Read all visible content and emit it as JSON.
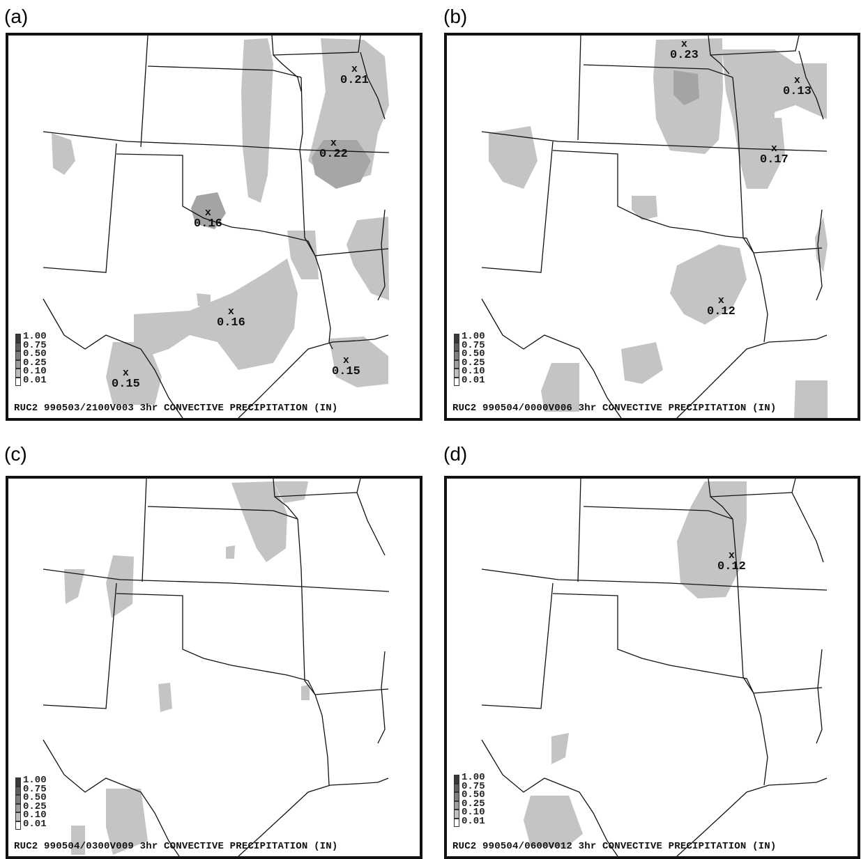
{
  "panels": [
    {
      "label": "(a)",
      "caption": "RUC2 990503/2100V003 3hr CONVECTIVE PRECIPITATION (IN)",
      "maxima": [
        {
          "value": "0.21"
        },
        {
          "value": "0.22"
        },
        {
          "value": "0.16"
        },
        {
          "value": "0.16"
        },
        {
          "value": "0.15"
        },
        {
          "value": "0.15"
        }
      ]
    },
    {
      "label": "(b)",
      "caption": "RUC2 990504/0000V006 3hr CONVECTIVE PRECIPITATION (IN)",
      "maxima": [
        {
          "value": "0.23"
        },
        {
          "value": "0.13"
        },
        {
          "value": "0.17"
        },
        {
          "value": "0.12"
        }
      ]
    },
    {
      "label": "(c)",
      "caption": "RUC2 990504/0300V009 3hr CONVECTIVE PRECIPITATION (IN)",
      "maxima": []
    },
    {
      "label": "(d)",
      "caption": "RUC2 990504/0600V012 3hr CONVECTIVE PRECIPITATION (IN)",
      "maxima": [
        {
          "value": "0.12"
        }
      ]
    }
  ],
  "legend": {
    "levels": [
      "1.00",
      "0.75",
      "0.50",
      "0.25",
      "0.10",
      "0.01"
    ],
    "colors": [
      "#3a3a3a",
      "#5e5e5e",
      "#7e7e7e",
      "#9c9c9c",
      "#bdbdbd",
      "#ffffff"
    ]
  },
  "marker_symbol": "x"
}
